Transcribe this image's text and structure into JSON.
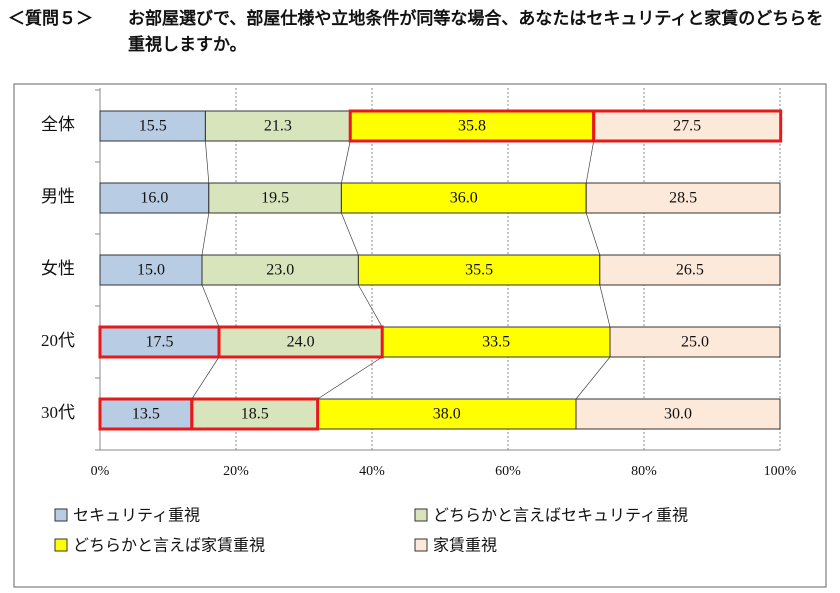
{
  "chart_data": {
    "type": "stacked-bar-horizontal",
    "question_label": "＜質問５＞",
    "title": "お部屋選びで、部屋仕様や立地条件が同等な場合、あなたはセキュリティと家賃のどちらを重視しますか。",
    "categories": [
      "全体",
      "男性",
      "女性",
      "20代",
      "30代"
    ],
    "series": [
      {
        "name": "セキュリティ重視",
        "color": "#b8cce4",
        "values": [
          15.5,
          16.0,
          15.0,
          17.5,
          13.5
        ],
        "value_labels": [
          "15.5",
          "16.0",
          "15.0",
          "17.5",
          "13.5"
        ],
        "highlight": [
          false,
          false,
          false,
          true,
          true
        ]
      },
      {
        "name": "どちらかと言えばセキュリティ重視",
        "color": "#d7e4bc",
        "values": [
          21.3,
          19.5,
          23.0,
          24.0,
          18.5
        ],
        "value_labels": [
          "21.3",
          "19.5",
          "23.0",
          "24.0",
          "18.5"
        ],
        "highlight": [
          false,
          false,
          false,
          true,
          true
        ]
      },
      {
        "name": "どちらかと言えば家賃重視",
        "color": "#ffff00",
        "values": [
          35.8,
          36.0,
          35.5,
          33.5,
          38.0
        ],
        "value_labels": [
          "35.8",
          "36.0",
          "35.5",
          "33.5",
          "38.0"
        ],
        "highlight": [
          true,
          false,
          false,
          false,
          false
        ]
      },
      {
        "name": "家賃重視",
        "color": "#fde9d9",
        "values": [
          27.5,
          28.5,
          26.5,
          25.0,
          30.0
        ],
        "value_labels": [
          "27.5",
          "28.5",
          "26.5",
          "25.0",
          "30.0"
        ],
        "highlight": [
          true,
          false,
          false,
          false,
          false
        ]
      }
    ],
    "xlim": [
      0,
      100
    ],
    "xticks": [
      {
        "value": 0,
        "label": "0%"
      },
      {
        "value": 20,
        "label": "20%"
      },
      {
        "value": 40,
        "label": "40%"
      },
      {
        "value": 60,
        "label": "60%"
      },
      {
        "value": 80,
        "label": "80%"
      },
      {
        "value": 100,
        "label": "100%"
      }
    ],
    "grid": true,
    "highlight_color": "#e8191a"
  }
}
